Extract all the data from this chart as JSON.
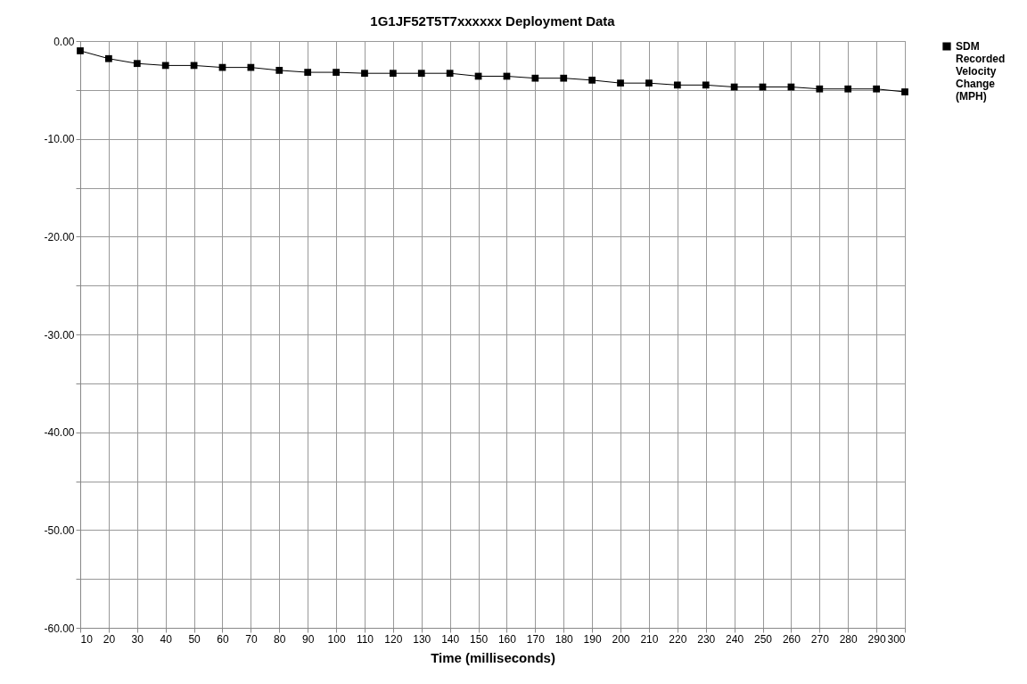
{
  "chart_data": {
    "type": "line",
    "title": "1G1JF52T5T7xxxxxx  Deployment Data",
    "xlabel": "Time (milliseconds)",
    "x": [
      10,
      20,
      30,
      40,
      50,
      60,
      70,
      80,
      90,
      100,
      110,
      120,
      130,
      140,
      150,
      160,
      170,
      180,
      190,
      200,
      210,
      220,
      230,
      240,
      250,
      260,
      270,
      280,
      290,
      300
    ],
    "series": [
      {
        "name": "SDM Recorded Velocity Change (MPH)",
        "color": "#000000",
        "values": [
          -1.0,
          -1.8,
          -2.3,
          -2.5,
          -2.5,
          -2.7,
          -2.7,
          -3.0,
          -3.2,
          -3.2,
          -3.3,
          -3.3,
          -3.3,
          -3.3,
          -3.6,
          -3.6,
          -3.8,
          -3.8,
          -4.0,
          -4.3,
          -4.3,
          -4.5,
          -4.5,
          -4.7,
          -4.7,
          -4.7,
          -4.9,
          -4.9,
          -4.9,
          -5.2
        ]
      }
    ],
    "xlim": [
      10,
      300
    ],
    "xticks": [
      10,
      20,
      30,
      40,
      50,
      60,
      70,
      80,
      90,
      100,
      110,
      120,
      130,
      140,
      150,
      160,
      170,
      180,
      190,
      200,
      210,
      220,
      230,
      240,
      250,
      260,
      270,
      280,
      290,
      300
    ],
    "ylim": [
      -60,
      0
    ],
    "yticks": [
      {
        "value": -60,
        "label": "-60.00"
      },
      {
        "value": -55,
        "label": null
      },
      {
        "value": -50,
        "label": "-50.00"
      },
      {
        "value": -45,
        "label": null
      },
      {
        "value": -40,
        "label": "-40.00"
      },
      {
        "value": -35,
        "label": null
      },
      {
        "value": -30,
        "label": "-30.00"
      },
      {
        "value": -25,
        "label": null
      },
      {
        "value": -20,
        "label": "-20.00"
      },
      {
        "value": -15,
        "label": null
      },
      {
        "value": -10,
        "label": "-10.00"
      },
      {
        "value": -5,
        "label": null
      },
      {
        "value": 0,
        "label": "0.00"
      }
    ],
    "grid": true,
    "legend": "top right",
    "marker": "square",
    "line_style": "solid"
  }
}
